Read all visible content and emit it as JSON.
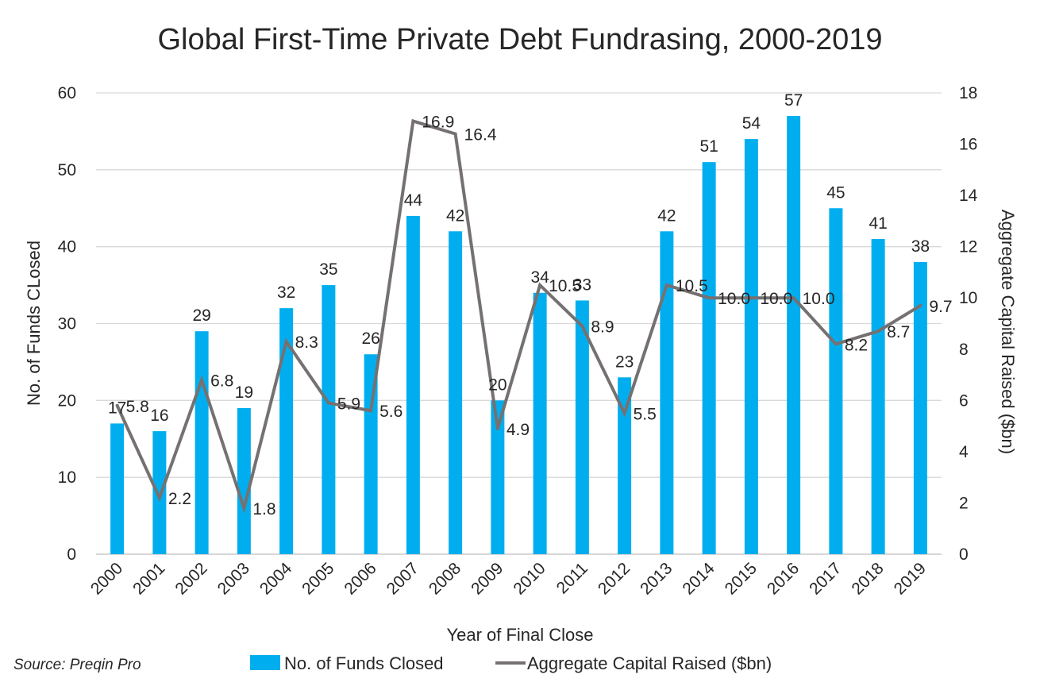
{
  "chart_data": {
    "type": "bar",
    "title": "Global First-Time Private Debt Fundrasing, 2000-2019",
    "xlabel": "Year of Final Close",
    "ylabel": "No. of Funds CLosed",
    "y2label": "Aggregate Capital Raised ($bn)",
    "categories": [
      "2000",
      "2001",
      "2002",
      "2003",
      "2004",
      "2005",
      "2006",
      "2007",
      "2008",
      "2009",
      "2010",
      "2011",
      "2012",
      "2013",
      "2014",
      "2015",
      "2016",
      "2017",
      "2018",
      "2019"
    ],
    "ylim": [
      0,
      60
    ],
    "y2lim": [
      0,
      18
    ],
    "yticks": [
      "0",
      "10",
      "20",
      "30",
      "40",
      "50",
      "60"
    ],
    "y2ticks": [
      "0",
      "2",
      "4",
      "6",
      "8",
      "10",
      "12",
      "14",
      "16",
      "18"
    ],
    "grid": true,
    "legend_position": "bottom",
    "series": [
      {
        "name": "No. of Funds Closed",
        "type": "bar",
        "axis": "left",
        "color": "#00AEEF",
        "values": [
          17,
          16,
          29,
          19,
          32,
          35,
          26,
          44,
          42,
          20,
          34,
          33,
          23,
          42,
          51,
          54,
          57,
          45,
          41,
          38
        ],
        "labels": [
          "17",
          "16",
          "29",
          "19",
          "32",
          "35",
          "26",
          "44",
          "42",
          "20",
          "34",
          "33",
          "23",
          "42",
          "51",
          "54",
          "57",
          "45",
          "41",
          "38"
        ]
      },
      {
        "name": "Aggregate Capital Raised ($bn)",
        "type": "line",
        "axis": "right",
        "color": "#767171",
        "values": [
          5.8,
          2.2,
          6.8,
          1.8,
          8.3,
          5.9,
          5.6,
          16.9,
          16.4,
          4.9,
          10.5,
          8.9,
          5.5,
          10.5,
          10.0,
          10.0,
          10.0,
          8.2,
          8.7,
          9.7
        ],
        "labels": [
          "5.8",
          "2.2",
          "6.8",
          "1.8",
          "8.3",
          "5.9",
          "5.6",
          "16.9",
          "16.4",
          "4.9",
          "10.5",
          "8.9",
          "5.5",
          "10.5",
          "10.0",
          "10.0",
          "10.0",
          "8.2",
          "8.7",
          "9.7"
        ]
      }
    ]
  },
  "source": "Source: Preqin Pro"
}
